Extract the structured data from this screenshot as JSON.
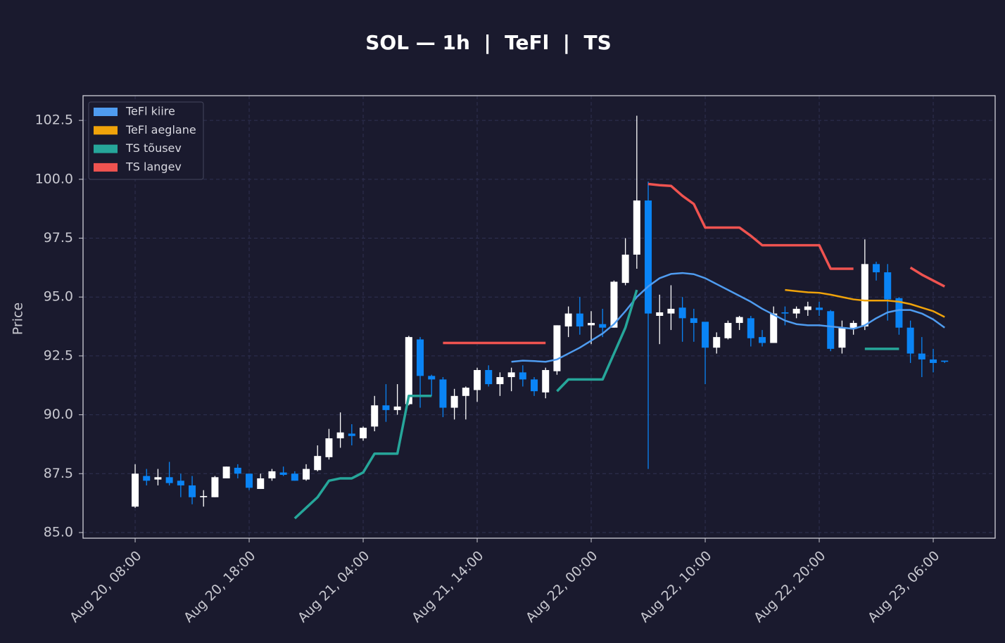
{
  "chart_data": {
    "type": "candlestick",
    "title": "SOL — 1h  |  TeFl  |  TS",
    "y_label": "Price",
    "x": [
      "Aug 20, 08:00",
      "Aug 20, 09:00",
      "Aug 20, 10:00",
      "Aug 20, 11:00",
      "Aug 20, 12:00",
      "Aug 20, 13:00",
      "Aug 20, 14:00",
      "Aug 20, 15:00",
      "Aug 20, 16:00",
      "Aug 20, 17:00",
      "Aug 20, 18:00",
      "Aug 20, 19:00",
      "Aug 20, 20:00",
      "Aug 20, 21:00",
      "Aug 20, 22:00",
      "Aug 20, 23:00",
      "Aug 21, 00:00",
      "Aug 21, 01:00",
      "Aug 21, 02:00",
      "Aug 21, 03:00",
      "Aug 21, 04:00",
      "Aug 21, 05:00",
      "Aug 21, 06:00",
      "Aug 21, 07:00",
      "Aug 21, 08:00",
      "Aug 21, 09:00",
      "Aug 21, 10:00",
      "Aug 21, 11:00",
      "Aug 21, 12:00",
      "Aug 21, 13:00",
      "Aug 21, 14:00",
      "Aug 21, 15:00",
      "Aug 21, 16:00",
      "Aug 21, 17:00",
      "Aug 21, 18:00",
      "Aug 21, 19:00",
      "Aug 21, 20:00",
      "Aug 21, 21:00",
      "Aug 21, 22:00",
      "Aug 21, 23:00",
      "Aug 22, 00:00",
      "Aug 22, 01:00",
      "Aug 22, 02:00",
      "Aug 22, 03:00",
      "Aug 22, 04:00",
      "Aug 22, 05:00",
      "Aug 22, 06:00",
      "Aug 22, 07:00",
      "Aug 22, 08:00",
      "Aug 22, 09:00",
      "Aug 22, 10:00",
      "Aug 22, 11:00",
      "Aug 22, 12:00",
      "Aug 22, 13:00",
      "Aug 22, 14:00",
      "Aug 22, 15:00",
      "Aug 22, 16:00",
      "Aug 22, 17:00",
      "Aug 22, 18:00",
      "Aug 22, 19:00",
      "Aug 22, 20:00",
      "Aug 22, 21:00",
      "Aug 22, 22:00",
      "Aug 22, 23:00",
      "Aug 23, 00:00",
      "Aug 23, 01:00",
      "Aug 23, 02:00",
      "Aug 23, 03:00",
      "Aug 23, 04:00",
      "Aug 23, 05:00",
      "Aug 23, 06:00",
      "Aug 23, 07:00"
    ],
    "open": [
      86.1,
      87.4,
      87.25,
      87.35,
      87.2,
      87.0,
      86.5,
      86.5,
      87.3,
      87.75,
      87.5,
      86.85,
      87.3,
      87.55,
      87.5,
      87.25,
      87.65,
      88.2,
      89.0,
      89.2,
      89.0,
      89.5,
      90.4,
      90.2,
      90.45,
      93.2,
      91.65,
      91.5,
      90.3,
      90.8,
      91.05,
      91.9,
      91.3,
      91.6,
      91.8,
      91.5,
      90.95,
      91.85,
      93.75,
      94.3,
      93.8,
      93.85,
      93.7,
      95.6,
      96.8,
      99.1,
      94.2,
      94.3,
      94.55,
      94.1,
      93.95,
      92.85,
      93.25,
      93.9,
      94.1,
      93.3,
      93.05,
      94.35,
      94.3,
      94.45,
      94.55,
      94.4,
      92.85,
      93.65,
      93.75,
      96.4,
      96.05,
      94.95,
      93.7,
      92.6,
      92.35,
      92.3
    ],
    "high": [
      87.9,
      87.7,
      87.7,
      88.0,
      87.5,
      87.4,
      86.8,
      87.4,
      87.8,
      87.9,
      87.5,
      87.5,
      87.7,
      87.8,
      87.6,
      87.9,
      88.7,
      89.4,
      90.1,
      89.6,
      89.5,
      90.8,
      91.3,
      91.3,
      93.35,
      93.3,
      91.7,
      91.6,
      91.1,
      91.2,
      92.0,
      92.1,
      91.8,
      92.0,
      92.1,
      91.6,
      92.0,
      93.8,
      94.6,
      95.0,
      94.4,
      94.5,
      95.7,
      97.5,
      102.7,
      99.9,
      95.1,
      95.5,
      95.0,
      94.5,
      93.9,
      93.5,
      94.0,
      94.2,
      94.2,
      93.6,
      94.6,
      94.6,
      94.6,
      94.8,
      94.8,
      94.45,
      94.0,
      94.0,
      97.45,
      96.5,
      96.4,
      95.0,
      94.0,
      93.3,
      92.8,
      92.3
    ],
    "low": [
      86.05,
      87.0,
      87.0,
      87.0,
      86.5,
      86.2,
      86.1,
      86.5,
      87.3,
      87.3,
      86.8,
      86.85,
      87.2,
      87.4,
      87.2,
      87.2,
      87.6,
      88.1,
      88.6,
      88.7,
      88.9,
      89.3,
      89.7,
      90.0,
      90.4,
      90.3,
      90.8,
      89.9,
      89.8,
      89.8,
      90.55,
      91.2,
      90.8,
      91.0,
      91.2,
      90.8,
      90.7,
      91.7,
      93.3,
      93.4,
      93.0,
      93.3,
      93.7,
      95.5,
      96.2,
      87.7,
      93.0,
      93.6,
      93.1,
      93.1,
      91.3,
      92.6,
      93.2,
      93.6,
      92.9,
      92.9,
      93.05,
      93.8,
      94.1,
      94.2,
      94.2,
      92.7,
      92.6,
      93.4,
      93.6,
      95.7,
      94.0,
      93.4,
      92.2,
      91.6,
      91.8,
      92.2
    ],
    "close": [
      87.5,
      87.2,
      87.35,
      87.1,
      87.0,
      86.5,
      86.55,
      87.35,
      87.8,
      87.5,
      86.9,
      87.3,
      87.6,
      87.45,
      87.2,
      87.7,
      88.25,
      89.0,
      89.25,
      89.1,
      89.45,
      90.4,
      90.2,
      90.35,
      93.3,
      91.65,
      91.5,
      90.3,
      90.8,
      91.15,
      91.9,
      91.3,
      91.6,
      91.8,
      91.5,
      91.0,
      91.9,
      93.8,
      94.3,
      93.75,
      93.9,
      93.7,
      95.65,
      96.8,
      99.1,
      94.3,
      94.35,
      94.5,
      94.1,
      93.9,
      92.85,
      93.3,
      93.9,
      94.15,
      93.25,
      93.05,
      94.3,
      94.3,
      94.5,
      94.6,
      94.45,
      92.8,
      93.7,
      93.9,
      96.4,
      96.05,
      94.9,
      93.7,
      92.6,
      92.35,
      92.2,
      92.25
    ],
    "up_color": "#ffffff",
    "down_color": "#0a84f5",
    "series": [
      {
        "name": "TeFl kiire",
        "color": "#4f9cf0",
        "width": 2.5,
        "values": [
          null,
          null,
          null,
          null,
          null,
          null,
          null,
          null,
          null,
          null,
          null,
          null,
          null,
          null,
          null,
          null,
          null,
          null,
          null,
          null,
          null,
          null,
          null,
          null,
          null,
          null,
          null,
          null,
          null,
          null,
          null,
          null,
          null,
          92.25,
          92.3,
          92.28,
          92.25,
          92.35,
          92.6,
          92.85,
          93.15,
          93.45,
          93.85,
          94.4,
          95.0,
          95.45,
          95.8,
          95.98,
          96.02,
          95.97,
          95.8,
          95.55,
          95.3,
          95.05,
          94.8,
          94.5,
          94.25,
          94.0,
          93.85,
          93.8,
          93.8,
          93.75,
          93.7,
          93.65,
          93.8,
          94.1,
          94.35,
          94.45,
          94.45,
          94.3,
          94.05,
          93.7
        ]
      },
      {
        "name": "TeFl aeglane",
        "color": "#f0a30a",
        "width": 2.5,
        "values": [
          null,
          null,
          null,
          null,
          null,
          null,
          null,
          null,
          null,
          null,
          null,
          null,
          null,
          null,
          null,
          null,
          null,
          null,
          null,
          null,
          null,
          null,
          null,
          null,
          null,
          null,
          null,
          null,
          null,
          null,
          null,
          null,
          null,
          null,
          null,
          null,
          null,
          null,
          null,
          null,
          null,
          null,
          null,
          null,
          null,
          null,
          null,
          null,
          null,
          null,
          null,
          null,
          null,
          null,
          null,
          null,
          null,
          95.3,
          95.25,
          95.2,
          95.18,
          95.1,
          95.0,
          94.9,
          94.85,
          94.85,
          94.85,
          94.8,
          94.7,
          94.55,
          94.4,
          94.15
        ]
      },
      {
        "name": "TS tõusev",
        "color": "#26a69a",
        "width": 3.5,
        "values": [
          null,
          null,
          null,
          null,
          null,
          null,
          null,
          null,
          null,
          null,
          null,
          null,
          null,
          null,
          85.6,
          86.05,
          86.5,
          87.2,
          87.3,
          87.3,
          87.55,
          88.35,
          88.35,
          88.35,
          90.8,
          90.8,
          90.8,
          null,
          null,
          null,
          null,
          null,
          null,
          null,
          null,
          null,
          null,
          91.0,
          91.5,
          91.5,
          91.5,
          91.5,
          92.6,
          93.7,
          95.3,
          null,
          null,
          null,
          null,
          null,
          null,
          null,
          null,
          null,
          null,
          null,
          null,
          null,
          null,
          null,
          null,
          null,
          null,
          null,
          92.8,
          92.8,
          92.8,
          92.8,
          null,
          null,
          null,
          null
        ]
      },
      {
        "name": "TS langev",
        "color": "#ef5350",
        "width": 3.5,
        "values": [
          null,
          null,
          null,
          null,
          null,
          null,
          null,
          null,
          null,
          null,
          null,
          null,
          null,
          null,
          null,
          null,
          null,
          null,
          null,
          null,
          null,
          null,
          null,
          null,
          null,
          null,
          null,
          93.05,
          93.05,
          93.05,
          93.05,
          93.05,
          93.05,
          93.05,
          93.05,
          93.05,
          93.05,
          null,
          null,
          null,
          null,
          null,
          null,
          null,
          null,
          99.8,
          99.75,
          99.72,
          99.3,
          98.95,
          97.95,
          97.95,
          97.95,
          97.95,
          97.6,
          97.2,
          97.2,
          97.2,
          97.2,
          97.2,
          97.2,
          96.2,
          96.2,
          96.2,
          null,
          null,
          null,
          null,
          96.25,
          95.95,
          95.7,
          95.45
        ]
      }
    ],
    "ylim": [
      84.76,
      103.55
    ],
    "yticks": [
      {
        "value": 85,
        "label": "85.0"
      },
      87.5,
      {
        "value": 90,
        "label": "90.0"
      },
      92.5,
      {
        "value": 95,
        "label": "95.0"
      },
      97.5,
      {
        "value": 100,
        "label": "100.0"
      },
      102.5
    ],
    "xticks": [
      "Aug 20, 08:00",
      "Aug 20, 18:00",
      "Aug 21, 04:00",
      "Aug 21, 14:00",
      "Aug 22, 00:00",
      "Aug 22, 10:00",
      "Aug 22, 20:00",
      "Aug 23, 06:00"
    ],
    "grid": true,
    "legend": "upper left"
  }
}
